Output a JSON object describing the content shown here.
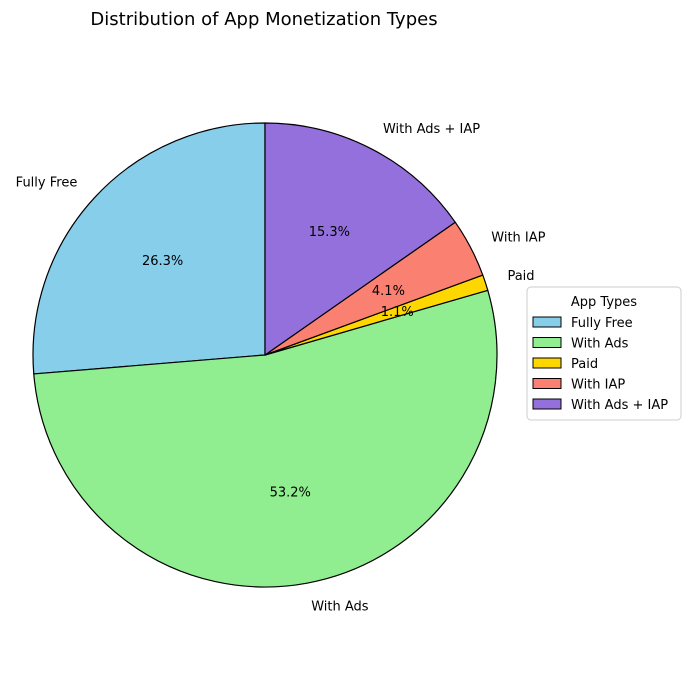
{
  "chart_data": {
    "type": "pie",
    "title": "Distribution of App Monetization Types",
    "start_angle_deg": 90,
    "direction": "counterclockwise",
    "slices": [
      {
        "label": "Fully Free",
        "value": 26.3,
        "pct_label": "26.3%",
        "color": "#87CEEB"
      },
      {
        "label": "With Ads",
        "value": 53.2,
        "pct_label": "53.2%",
        "color": "#90EE90"
      },
      {
        "label": "Paid",
        "value": 1.1,
        "pct_label": "1.1%",
        "color": "#FFD700"
      },
      {
        "label": "With IAP",
        "value": 4.1,
        "pct_label": "4.1%",
        "color": "#FA8072"
      },
      {
        "label": "With Ads + IAP",
        "value": 15.3,
        "pct_label": "15.3%",
        "color": "#9370DB"
      }
    ],
    "legend": {
      "title": "App Types",
      "placement": "right"
    }
  }
}
